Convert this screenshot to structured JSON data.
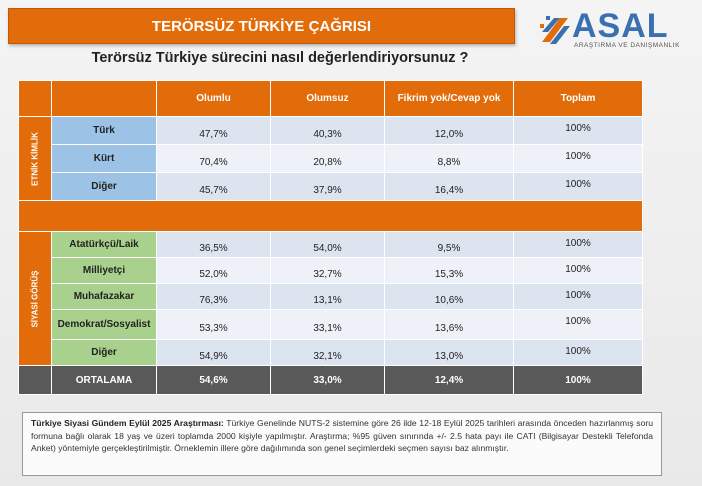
{
  "header": {
    "title": "TERÖRSÜZ TÜRKİYE ÇAĞRISI"
  },
  "logo": {
    "name": "ASAL",
    "tagline": "ARAŞTIRMA VE DANIŞMANLIK",
    "color": "#3a6fb0"
  },
  "question": "Terörsüz Türkiye sürecini nasıl değerlendiriyorsunuz ?",
  "table": {
    "columns": [
      "Olumlu",
      "Olumsuz",
      "Fikrim yok/Cevap yok",
      "Toplam"
    ],
    "groups": [
      {
        "label": "ETNİK KİMLİK",
        "rows": [
          {
            "label": "Türk",
            "values": [
              "47,7%",
              "40,3%",
              "12,0%",
              "100%"
            ]
          },
          {
            "label": "Kürt",
            "values": [
              "70,4%",
              "20,8%",
              "8,8%",
              "100%"
            ]
          },
          {
            "label": "Diğer",
            "values": [
              "45,7%",
              "37,9%",
              "16,4%",
              "100%"
            ]
          }
        ]
      },
      {
        "label": "SİYASİ GÖRÜŞ",
        "rows": [
          {
            "label": "Atatürkçü/Laik",
            "values": [
              "36,5%",
              "54,0%",
              "9,5%",
              "100%"
            ]
          },
          {
            "label": "Milliyetçi",
            "values": [
              "52,0%",
              "32,7%",
              "15,3%",
              "100%"
            ]
          },
          {
            "label": "Muhafazakar",
            "values": [
              "76,3%",
              "13,1%",
              "10,6%",
              "100%"
            ]
          },
          {
            "label": "Demokrat/Sosyalist",
            "values": [
              "53,3%",
              "33,1%",
              "13,6%",
              "100%"
            ]
          },
          {
            "label": "Diğer",
            "values": [
              "54,9%",
              "32,1%",
              "13,0%",
              "100%"
            ]
          }
        ]
      }
    ],
    "average": {
      "label": "ORTALAMA",
      "values": [
        "54,6%",
        "33,0%",
        "12,4%",
        "100%"
      ]
    }
  },
  "note": {
    "title": "Türkiye Siyasi Gündem Eylül 2025 Araştırması:",
    "body": " Türkiye Genelinde NUTS-2 sistemine göre 26 ilde 12-18 Eylül 2025 tarihleri arasında önceden hazırlanmış soru formuna bağlı olarak 18 yaş ve üzeri toplamda 2000 kişiyle yapılmıştır. Araştırma; %95 güven sınırında +/- 2.5 hata payı ile CATI (Bilgisayar Destekli Telefonda Anket) yöntemiyle gerçekleştirilmiştir. Örneklemin illere göre dağılımında son genel seçimlerdeki seçmen sayısı baz alınmıştır."
  },
  "colors": {
    "accent": "#e36c0a",
    "ethnic_label": "#9cc3e6",
    "political_label": "#a9d18e",
    "average_row": "#595959"
  }
}
